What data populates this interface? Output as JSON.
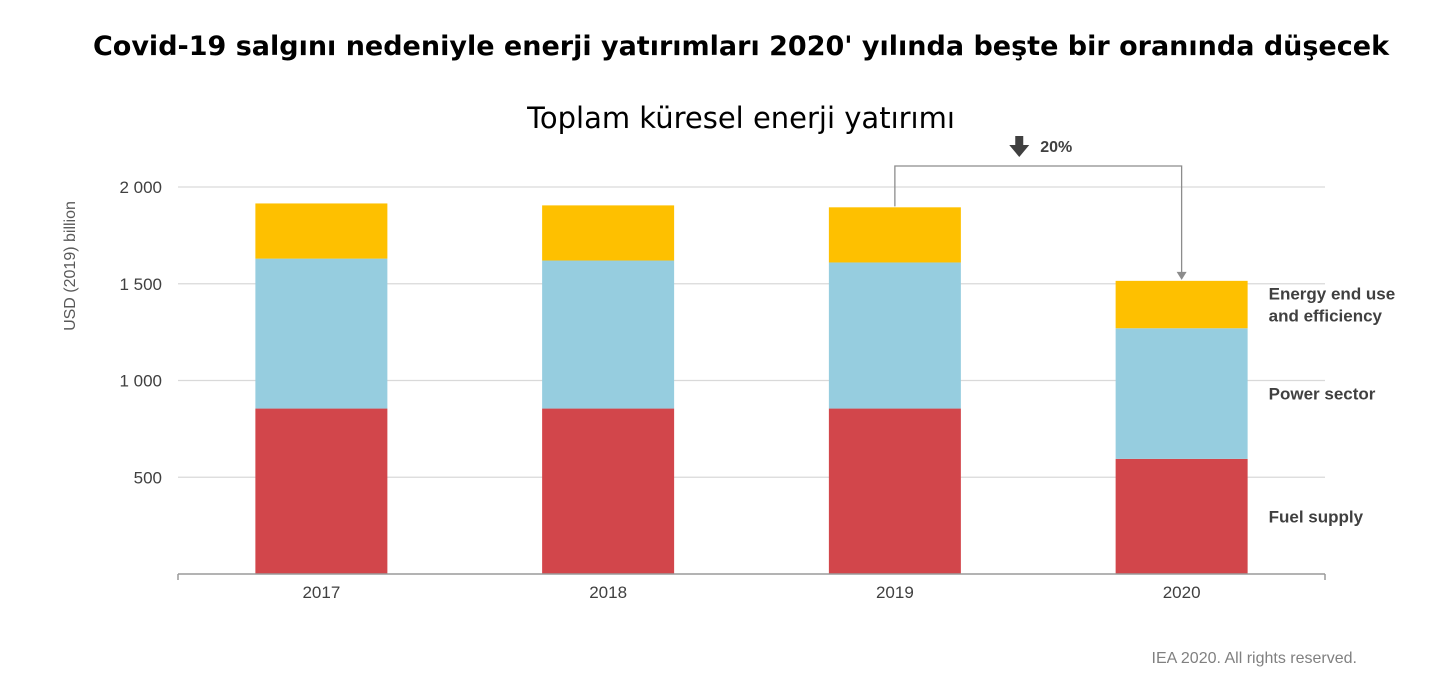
{
  "chart_data": {
    "type": "bar",
    "stacked": true,
    "title": "Covid-19 salgını nedeniyle enerji yatırımları 2020' yılında beşte bir oranında düşecek",
    "subtitle": "Toplam küresel enerji yatırımı",
    "ylabel": "USD (2019) billion",
    "ylim": [
      0,
      2000
    ],
    "yticks": [
      {
        "value": 500,
        "label": "500"
      },
      {
        "value": 1000,
        "label": "1 000"
      },
      {
        "value": 1500,
        "label": "1 500"
      },
      {
        "value": 2000,
        "label": "2 000"
      }
    ],
    "grid": true,
    "categories": [
      "2017",
      "2018",
      "2019",
      "2020"
    ],
    "series": [
      {
        "name": "Fuel supply",
        "color": "#d2464b",
        "values": [
          855,
          855,
          855,
          595
        ]
      },
      {
        "name": "Power sector",
        "color": "#96cddf",
        "values": [
          775,
          765,
          755,
          675
        ]
      },
      {
        "name": "Energy end use and efficiency",
        "legend_lines": [
          "Energy end use",
          "and efficiency"
        ],
        "color": "#fec000",
        "values": [
          285,
          285,
          285,
          245
        ]
      }
    ],
    "legend": "right",
    "annotation": {
      "label": "20%",
      "from": "2019",
      "to": "2020"
    },
    "source": "IEA 2020. All rights reserved."
  }
}
